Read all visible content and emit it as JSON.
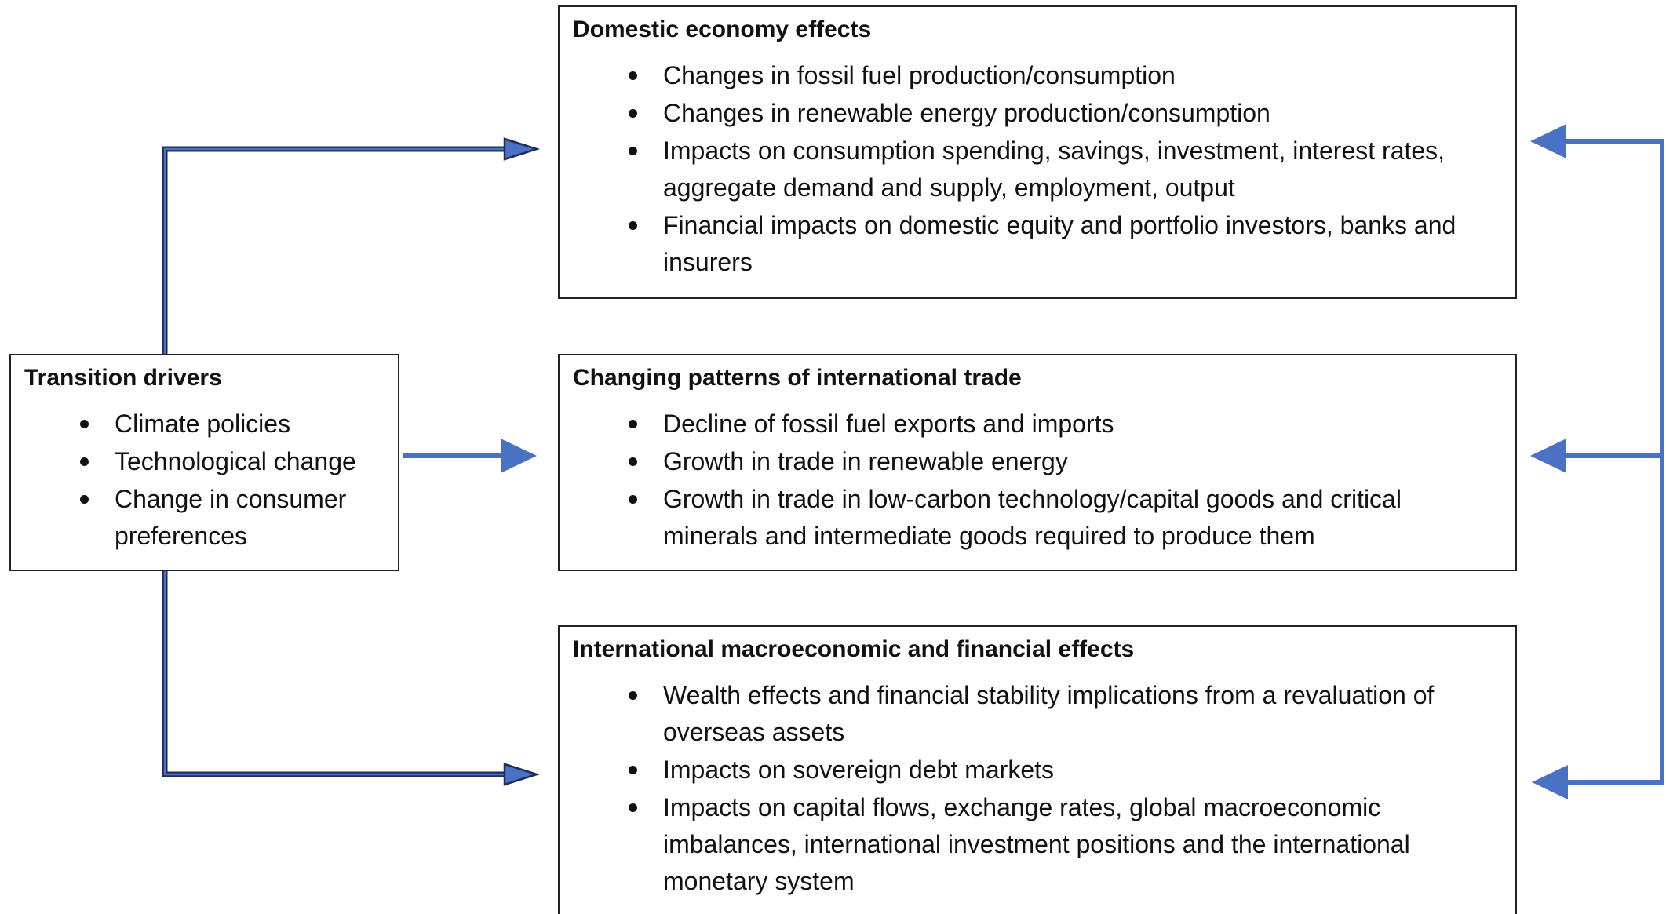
{
  "drivers": {
    "title": "Transition drivers",
    "items": [
      "Climate policies",
      "Technological change",
      "Change in consumer preferences"
    ]
  },
  "effects": [
    {
      "title": "Domestic economy effects",
      "items": [
        "Changes in fossil fuel production/consumption",
        "Changes in renewable energy production/consumption",
        "Impacts on consumption spending, savings, investment, interest rates, aggregate demand and supply, employment, output",
        "Financial impacts on domestic equity and portfolio investors, banks and insurers"
      ]
    },
    {
      "title": "Changing patterns of international trade",
      "items": [
        "Decline of fossil fuel exports and imports",
        "Growth in trade in renewable energy",
        "Growth in trade in low-carbon technology/capital goods and critical minerals and intermediate goods required to produce them"
      ]
    },
    {
      "title": "International macroeconomic and financial effects",
      "items": [
        "Wealth effects and financial stability implications from a revaluation of overseas assets",
        "Impacts on sovereign debt markets",
        "Impacts on capital flows, exchange rates, global macroeconomic imbalances, international investment positions and the international monetary system"
      ]
    }
  ]
}
